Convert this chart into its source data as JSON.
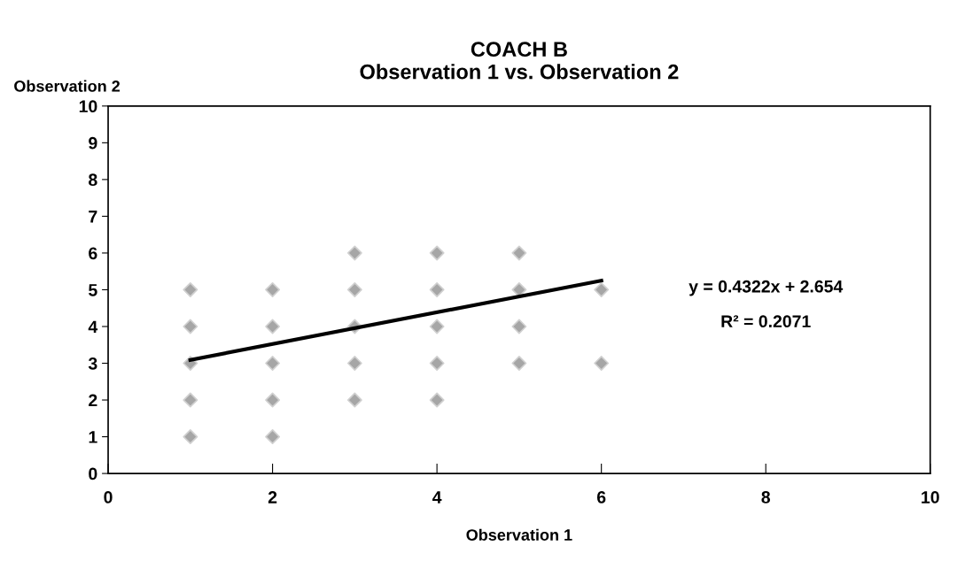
{
  "chart_data": {
    "type": "scatter",
    "title": "COACH B\nObservation 1 vs. Observation 2",
    "xlabel": "Observation 1",
    "ylabel": "Observation 2",
    "series": [
      {
        "color": "#a6a6a6",
        "marker": "diamond",
        "x": [
          1,
          1,
          1,
          1,
          1,
          2,
          2,
          2,
          2,
          2,
          3,
          3,
          3,
          3,
          3,
          4,
          4,
          4,
          4,
          4,
          5,
          5,
          5,
          5,
          6,
          6
        ],
        "values": [
          1,
          2,
          3,
          4,
          5,
          1,
          2,
          3,
          4,
          5,
          2,
          3,
          4,
          5,
          6,
          2,
          3,
          4,
          5,
          6,
          3,
          4,
          5,
          6,
          3,
          5
        ]
      },
      {
        "type": "line",
        "color": "#000000",
        "marker": "none",
        "line_style": "solid",
        "x": [
          1,
          6
        ],
        "values": [
          3.09,
          5.25
        ]
      }
    ],
    "annotations": [
      "y = 0.4322x + 2.654",
      "R² = 0.2071"
    ],
    "xlim": [
      0,
      10
    ],
    "xticks": [
      0,
      2,
      4,
      6,
      8,
      10
    ],
    "ylim": [
      0,
      10
    ],
    "yticks": [
      0,
      1,
      2,
      3,
      4,
      5,
      6,
      7,
      8,
      9,
      10
    ],
    "grid": false,
    "legend": false
  }
}
